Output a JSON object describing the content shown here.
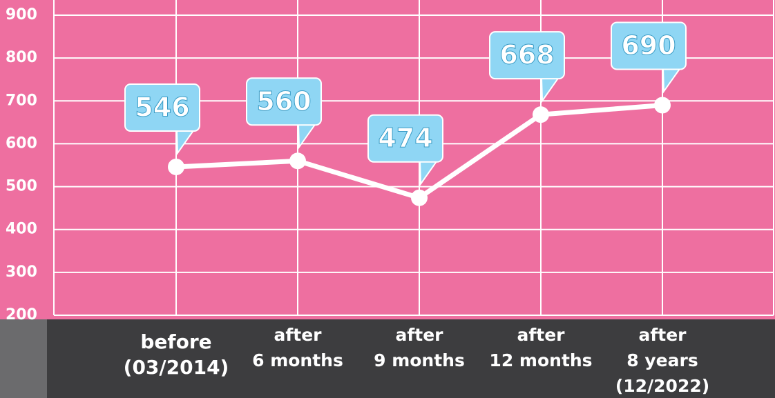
{
  "chart_data": {
    "type": "line",
    "categories": [
      "before\n(03/2014)",
      "after\n6 months",
      "after\n9 months",
      "after\n12 months",
      "after\n8 years\n(12/2022)"
    ],
    "values": [
      546,
      560,
      474,
      668,
      690
    ],
    "color": "#ffffff",
    "ylim": [
      200,
      900
    ],
    "yticks": [
      200,
      300,
      400,
      500,
      600,
      700,
      800,
      900
    ],
    "grid": true
  }
}
